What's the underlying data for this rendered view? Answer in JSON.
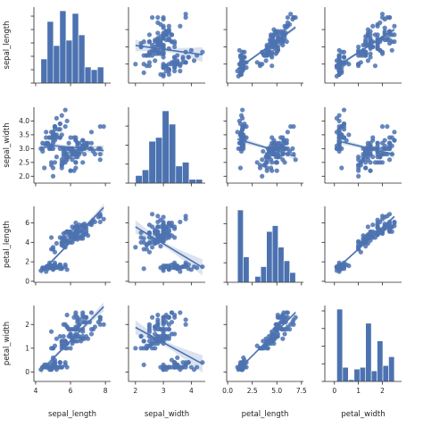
{
  "chart_data": {
    "type": "pairplot",
    "variables": [
      "sepal_length",
      "sepal_width",
      "petal_length",
      "petal_width"
    ],
    "ticks": {
      "sepal_length": [
        4,
        6,
        8
      ],
      "sepal_width": [
        2,
        3,
        4
      ],
      "petal_length": [
        0,
        2.5,
        5,
        7.5
      ],
      "petal_width": [
        0,
        1,
        2
      ]
    },
    "axis_ranges": {
      "sepal_length": [
        3.9,
        8.3
      ],
      "sepal_width": [
        1.75,
        4.5
      ],
      "petal_length": [
        -0.1,
        7.7
      ],
      "petal_width": [
        -0.4,
        2.8
      ]
    },
    "row_tick_labels": {
      "sepal_length": [
        "5",
        "6",
        "7"
      ],
      "sepal_width": [
        "2.0",
        "2.5",
        "3.0",
        "3.5",
        "4.0"
      ],
      "petal_length": [
        "0",
        "2",
        "4",
        "6"
      ],
      "petal_width": [
        "0",
        "1",
        "2"
      ]
    },
    "row_tick_values": {
      "sepal_length": [
        5,
        6,
        7
      ],
      "sepal_width": [
        2.0,
        2.5,
        3.0,
        3.5,
        4.0
      ],
      "petal_length": [
        0,
        2,
        4,
        6
      ],
      "petal_width": [
        0,
        1,
        2
      ]
    },
    "col_tick_labels": {
      "sepal_length": [
        "4",
        "6",
        "8"
      ],
      "sepal_width": [
        "2",
        "3",
        "4"
      ],
      "petal_length": [
        "0.0",
        "2.5",
        "5.0",
        "7.5"
      ],
      "petal_width": [
        "0",
        "1",
        "2"
      ]
    },
    "regression": {
      "sepal_length|sepal_width": {
        "slope": -0.223,
        "intercept": 6.53
      },
      "sepal_length|petal_length": {
        "slope": 0.409,
        "intercept": 4.31
      },
      "sepal_length|petal_width": {
        "slope": 0.889,
        "intercept": 4.78
      },
      "sepal_width|sepal_length": {
        "slope": -0.062,
        "intercept": 3.42
      },
      "sepal_width|petal_length": {
        "slope": -0.106,
        "intercept": 3.45
      },
      "sepal_width|petal_width": {
        "slope": -0.209,
        "intercept": 3.31
      },
      "petal_length|sepal_length": {
        "slope": 1.858,
        "intercept": -7.1
      },
      "petal_length|sepal_width": {
        "slope": -1.735,
        "intercept": 9.06
      },
      "petal_length|petal_width": {
        "slope": 2.23,
        "intercept": 1.08
      },
      "petal_width|sepal_length": {
        "slope": 0.753,
        "intercept": -3.2
      },
      "petal_width|sepal_width": {
        "slope": -0.641,
        "intercept": 3.16
      },
      "petal_width|petal_length": {
        "slope": 0.416,
        "intercept": -0.36
      }
    },
    "histograms": {
      "sepal_length": {
        "bins": [
          4.3,
          4.66,
          5.02,
          5.38,
          5.74,
          6.1,
          6.46,
          6.82,
          7.18,
          7.54,
          7.9
        ],
        "counts": [
          9,
          23,
          14,
          27,
          16,
          26,
          18,
          6,
          5,
          6
        ]
      },
      "sepal_width": {
        "bins": [
          2.0,
          2.24,
          2.48,
          2.72,
          2.96,
          3.2,
          3.44,
          3.68,
          3.92,
          4.16,
          4.4
        ],
        "counts": [
          4,
          7,
          22,
          24,
          38,
          31,
          9,
          11,
          2,
          2
        ]
      },
      "petal_length": {
        "bins": [
          1.0,
          1.59,
          2.18,
          2.77,
          3.36,
          3.95,
          4.54,
          5.13,
          5.72,
          6.31,
          6.9
        ],
        "counts": [
          37,
          13,
          0,
          3,
          8,
          26,
          29,
          18,
          11,
          5
        ]
      },
      "petal_width": {
        "bins": [
          0.1,
          0.34,
          0.58,
          0.82,
          1.06,
          1.3,
          1.54,
          1.78,
          2.02,
          2.26,
          2.5
        ],
        "counts": [
          41,
          8,
          1,
          7,
          8,
          33,
          6,
          23,
          9,
          14
        ]
      }
    },
    "observations": {
      "sepal_length": [
        5.1,
        4.9,
        4.7,
        4.6,
        5.0,
        5.4,
        4.6,
        5.0,
        4.4,
        4.9,
        5.4,
        4.8,
        4.8,
        4.3,
        5.8,
        5.7,
        5.4,
        5.1,
        5.7,
        5.1,
        5.4,
        5.1,
        4.6,
        5.1,
        4.8,
        5.0,
        5.0,
        5.2,
        5.2,
        4.7,
        4.8,
        5.4,
        5.2,
        5.5,
        4.9,
        5.0,
        5.5,
        4.9,
        4.4,
        5.1,
        5.0,
        4.5,
        4.4,
        5.0,
        5.1,
        4.8,
        5.1,
        4.6,
        5.3,
        5.0,
        7.0,
        6.4,
        6.9,
        5.5,
        6.5,
        5.7,
        6.3,
        4.9,
        6.6,
        5.2,
        5.0,
        5.9,
        6.0,
        6.1,
        5.6,
        6.7,
        5.6,
        5.8,
        6.2,
        5.6,
        5.9,
        6.1,
        6.3,
        6.1,
        6.4,
        6.6,
        6.8,
        6.7,
        6.0,
        5.7,
        5.5,
        5.5,
        5.8,
        6.0,
        5.4,
        6.0,
        6.7,
        6.3,
        5.6,
        5.5,
        5.5,
        6.1,
        5.8,
        5.0,
        5.6,
        5.7,
        5.7,
        6.2,
        5.1,
        5.7,
        6.3,
        5.8,
        7.1,
        6.3,
        6.5,
        7.6,
        4.9,
        7.3,
        6.7,
        7.2,
        6.5,
        6.4,
        6.8,
        5.7,
        5.8,
        6.4,
        6.5,
        7.7,
        7.7,
        6.0,
        6.9,
        5.6,
        7.7,
        6.3,
        6.7,
        7.2,
        6.2,
        6.1,
        6.4,
        7.2,
        7.4,
        7.9,
        6.4,
        6.3,
        6.1,
        7.7,
        6.3,
        6.4,
        6.0,
        6.9,
        6.7,
        6.9,
        5.8,
        6.8,
        6.7,
        6.7,
        6.3,
        6.5,
        6.2,
        5.9
      ],
      "sepal_width": [
        3.5,
        3.0,
        3.2,
        3.1,
        3.6,
        3.9,
        3.4,
        3.4,
        2.9,
        3.1,
        3.7,
        3.4,
        3.0,
        3.0,
        4.0,
        4.4,
        3.9,
        3.5,
        3.8,
        3.8,
        3.4,
        3.7,
        3.6,
        3.3,
        3.4,
        3.0,
        3.4,
        3.5,
        3.4,
        3.2,
        3.1,
        3.4,
        4.1,
        4.2,
        3.1,
        3.2,
        3.5,
        3.6,
        3.0,
        3.4,
        3.5,
        2.3,
        3.2,
        3.5,
        3.8,
        3.0,
        3.8,
        3.2,
        3.7,
        3.3,
        3.2,
        3.2,
        3.1,
        2.3,
        2.8,
        2.8,
        3.3,
        2.4,
        2.9,
        2.7,
        2.0,
        3.0,
        2.2,
        2.9,
        2.9,
        3.1,
        3.0,
        2.7,
        2.2,
        2.5,
        3.2,
        2.8,
        2.5,
        2.8,
        2.9,
        3.0,
        2.8,
        3.0,
        2.9,
        2.6,
        2.4,
        2.4,
        2.7,
        2.7,
        3.0,
        3.4,
        3.1,
        2.3,
        3.0,
        2.5,
        2.6,
        3.0,
        2.6,
        2.3,
        2.7,
        3.0,
        2.9,
        2.9,
        2.5,
        2.8,
        3.3,
        2.7,
        3.0,
        2.9,
        3.0,
        3.0,
        2.5,
        2.9,
        2.5,
        3.6,
        3.2,
        2.7,
        3.0,
        2.5,
        2.8,
        3.2,
        3.0,
        3.8,
        2.6,
        2.2,
        3.2,
        2.8,
        2.8,
        2.7,
        3.3,
        3.2,
        2.8,
        3.0,
        2.8,
        3.0,
        2.8,
        3.8,
        2.8,
        2.8,
        2.6,
        3.0,
        3.4,
        3.1,
        3.0,
        3.1,
        3.1,
        3.1,
        2.7,
        3.2,
        3.3,
        3.0,
        2.5,
        3.0,
        3.4,
        3.0
      ],
      "petal_length": [
        1.4,
        1.4,
        1.3,
        1.5,
        1.4,
        1.7,
        1.4,
        1.5,
        1.4,
        1.5,
        1.5,
        1.6,
        1.4,
        1.1,
        1.2,
        1.5,
        1.3,
        1.4,
        1.7,
        1.5,
        1.7,
        1.5,
        1.0,
        1.7,
        1.9,
        1.6,
        1.6,
        1.5,
        1.4,
        1.6,
        1.6,
        1.5,
        1.5,
        1.4,
        1.5,
        1.2,
        1.3,
        1.4,
        1.3,
        1.5,
        1.3,
        1.3,
        1.3,
        1.6,
        1.9,
        1.4,
        1.6,
        1.4,
        1.5,
        1.4,
        4.7,
        4.5,
        4.9,
        4.0,
        4.6,
        4.5,
        4.7,
        3.3,
        4.6,
        3.9,
        3.5,
        4.2,
        4.0,
        4.7,
        3.6,
        4.4,
        4.5,
        4.1,
        4.5,
        3.9,
        4.8,
        4.0,
        4.9,
        4.7,
        4.3,
        4.4,
        4.8,
        5.0,
        4.5,
        3.5,
        3.8,
        3.7,
        3.9,
        5.1,
        4.5,
        4.5,
        4.7,
        4.4,
        4.1,
        4.0,
        4.4,
        4.6,
        4.0,
        3.3,
        4.2,
        4.2,
        4.2,
        4.3,
        3.0,
        4.1,
        6.0,
        5.1,
        5.9,
        5.6,
        5.8,
        6.6,
        4.5,
        6.3,
        5.8,
        6.1,
        5.1,
        5.3,
        5.5,
        5.0,
        5.1,
        5.3,
        5.5,
        6.7,
        6.9,
        5.0,
        5.7,
        4.9,
        6.7,
        4.9,
        5.7,
        6.0,
        4.8,
        4.9,
        5.6,
        5.8,
        6.1,
        6.4,
        5.6,
        5.1,
        5.6,
        6.1,
        5.6,
        5.5,
        4.8,
        5.4,
        5.6,
        5.1,
        5.1,
        5.9,
        5.7,
        5.2,
        5.0,
        5.2,
        5.4,
        5.1
      ],
      "petal_width": [
        0.2,
        0.2,
        0.2,
        0.2,
        0.2,
        0.4,
        0.3,
        0.2,
        0.2,
        0.1,
        0.2,
        0.2,
        0.1,
        0.1,
        0.2,
        0.4,
        0.4,
        0.3,
        0.3,
        0.3,
        0.2,
        0.4,
        0.2,
        0.5,
        0.2,
        0.2,
        0.4,
        0.2,
        0.2,
        0.2,
        0.2,
        0.4,
        0.1,
        0.2,
        0.2,
        0.2,
        0.2,
        0.1,
        0.2,
        0.2,
        0.3,
        0.3,
        0.2,
        0.6,
        0.4,
        0.3,
        0.2,
        0.2,
        0.2,
        0.2,
        1.4,
        1.5,
        1.5,
        1.3,
        1.5,
        1.3,
        1.6,
        1.0,
        1.3,
        1.4,
        1.0,
        1.5,
        1.0,
        1.4,
        1.3,
        1.4,
        1.5,
        1.0,
        1.5,
        1.1,
        1.8,
        1.3,
        1.5,
        1.2,
        1.3,
        1.4,
        1.4,
        1.7,
        1.5,
        1.0,
        1.1,
        1.0,
        1.2,
        1.6,
        1.5,
        1.6,
        1.5,
        1.3,
        1.3,
        1.3,
        1.2,
        1.4,
        1.2,
        1.0,
        1.3,
        1.2,
        1.3,
        1.3,
        1.1,
        1.3,
        2.5,
        1.9,
        2.1,
        1.8,
        2.2,
        2.1,
        1.7,
        1.8,
        1.8,
        2.5,
        2.0,
        1.9,
        2.1,
        2.0,
        2.4,
        2.3,
        1.8,
        2.2,
        2.3,
        1.5,
        2.3,
        2.0,
        2.0,
        1.8,
        2.1,
        1.8,
        1.8,
        1.8,
        2.1,
        1.6,
        1.9,
        2.0,
        2.2,
        1.5,
        1.4,
        2.3,
        2.4,
        1.8,
        1.8,
        2.1,
        2.4,
        2.3,
        1.9,
        2.3,
        2.5,
        2.3,
        1.9,
        2.0,
        2.3,
        1.8
      ]
    }
  },
  "colors": {
    "mark": "#4c72b0",
    "band": "rgba(76,114,176,0.2)",
    "axis": "#262626"
  }
}
